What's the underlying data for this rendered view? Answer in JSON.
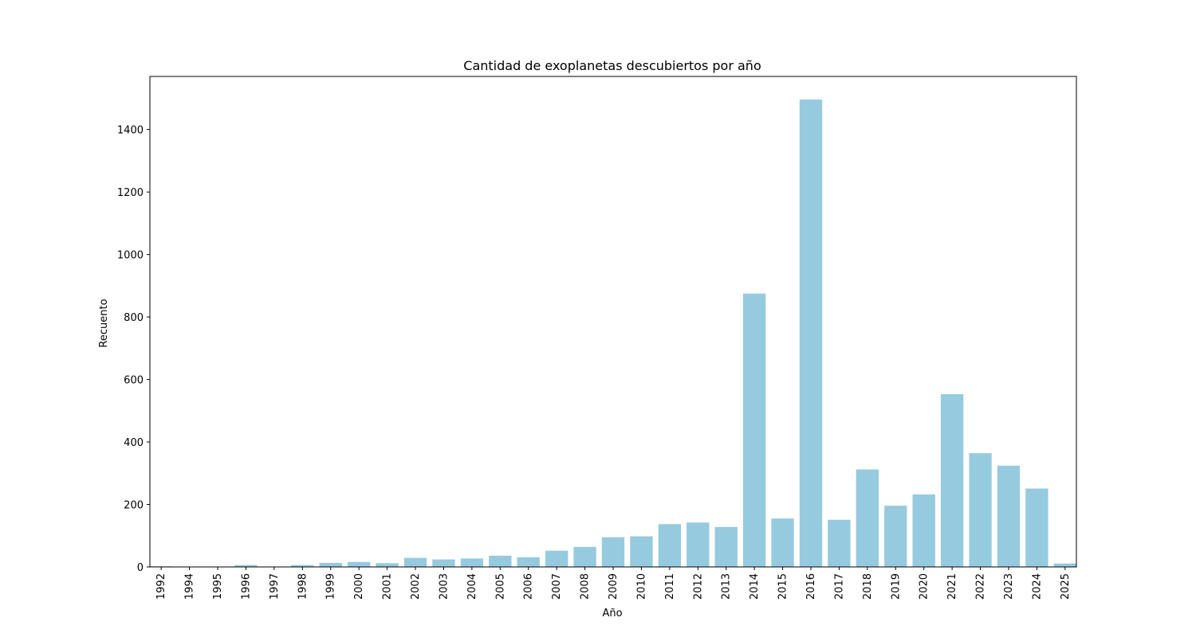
{
  "chart_data": {
    "type": "bar",
    "title": "Cantidad de exoplanetas descubiertos por año",
    "xlabel": "Año",
    "ylabel": "Recuento",
    "categories": [
      "1992",
      "1994",
      "1995",
      "1996",
      "1997",
      "1998",
      "1999",
      "2000",
      "2001",
      "2002",
      "2003",
      "2004",
      "2005",
      "2006",
      "2007",
      "2008",
      "2009",
      "2010",
      "2011",
      "2012",
      "2013",
      "2014",
      "2015",
      "2016",
      "2017",
      "2018",
      "2019",
      "2020",
      "2021",
      "2022",
      "2023",
      "2024",
      "2025"
    ],
    "values": [
      2,
      1,
      1,
      6,
      1,
      6,
      13,
      16,
      12,
      29,
      24,
      27,
      36,
      31,
      52,
      64,
      95,
      98,
      137,
      142,
      128,
      875,
      155,
      1496,
      151,
      312,
      196,
      232,
      553,
      364,
      324,
      251,
      11
    ],
    "ylim": [
      0,
      1570
    ],
    "yticks": [
      0,
      200,
      400,
      600,
      800,
      1000,
      1200,
      1400
    ],
    "bar_color": "#96cadf",
    "grid": false,
    "legend": "none"
  }
}
